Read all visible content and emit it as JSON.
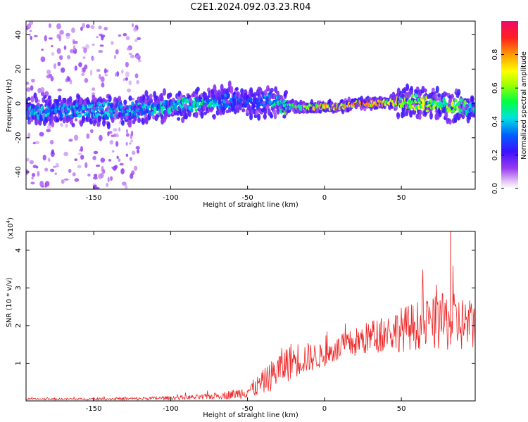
{
  "title": "C2E1.2024.092.03.23.R04",
  "chart_data": [
    {
      "type": "heatmap",
      "xlabel": "Height of straight line (km)",
      "ylabel": "Frequency (Hz)",
      "xlim": [
        -194,
        98
      ],
      "ylim": [
        -50,
        48
      ],
      "xticks": [
        -150,
        -100,
        -50,
        0,
        50
      ],
      "yticks": [
        -40,
        -20,
        0,
        20,
        40
      ],
      "colorbar": {
        "label": "Normalized spectral amplitude",
        "range": [
          0,
          1
        ],
        "ticks": [
          "0.0",
          "0.2",
          "0.4",
          "0.6",
          "0.8"
        ],
        "tick_values": [
          0.0,
          0.2,
          0.4,
          0.6,
          0.8
        ]
      },
      "ridge": {
        "description_points_x": [
          -194,
          -160,
          -130,
          -100,
          -80,
          -60,
          -45,
          -35,
          -25,
          -10,
          0,
          10,
          20,
          30,
          50,
          70,
          90,
          98
        ],
        "center_freq_hz": [
          -5,
          -4,
          -4,
          -2,
          0,
          2,
          0,
          2,
          -2,
          -2,
          -2,
          -2,
          0,
          0,
          1,
          0,
          -2,
          -3
        ],
        "peak_amplitude": [
          0.45,
          0.45,
          0.45,
          0.5,
          0.55,
          0.4,
          0.3,
          0.45,
          0.6,
          0.7,
          0.85,
          0.85,
          0.95,
          1.0,
          0.75,
          0.7,
          0.65,
          0.55
        ]
      }
    },
    {
      "type": "line",
      "xlabel": "Height of straight line (km)",
      "ylabel": "SNR (10 * v/v)",
      "scale_label": "(x10",
      "scale_exp": "4",
      "scale_close": ")",
      "xlim": [
        -194,
        98
      ],
      "ylim": [
        0,
        4.5
      ],
      "xticks": [
        -150,
        -100,
        -50,
        0,
        50
      ],
      "yticks": [
        1,
        2,
        3,
        4
      ],
      "series": [
        {
          "color": "#ee2222",
          "envelope_x": [
            -194,
            -150,
            -120,
            -100,
            -80,
            -65,
            -55,
            -45,
            -35,
            -28,
            -20,
            -10,
            0,
            10,
            20,
            30,
            40,
            50,
            60,
            70,
            80,
            90,
            98
          ],
          "envelope_mean": [
            0.05,
            0.05,
            0.06,
            0.08,
            0.1,
            0.15,
            0.2,
            0.35,
            0.65,
            0.9,
            1.1,
            1.15,
            1.2,
            1.4,
            1.55,
            1.7,
            1.8,
            1.9,
            2.0,
            2.05,
            2.1,
            2.05,
            2.0
          ],
          "envelope_amp": [
            0.02,
            0.03,
            0.04,
            0.05,
            0.07,
            0.1,
            0.15,
            0.25,
            0.4,
            0.5,
            0.5,
            0.4,
            0.3,
            0.35,
            0.4,
            0.45,
            0.5,
            0.6,
            0.65,
            0.7,
            0.8,
            0.75,
            0.7
          ]
        }
      ]
    }
  ]
}
